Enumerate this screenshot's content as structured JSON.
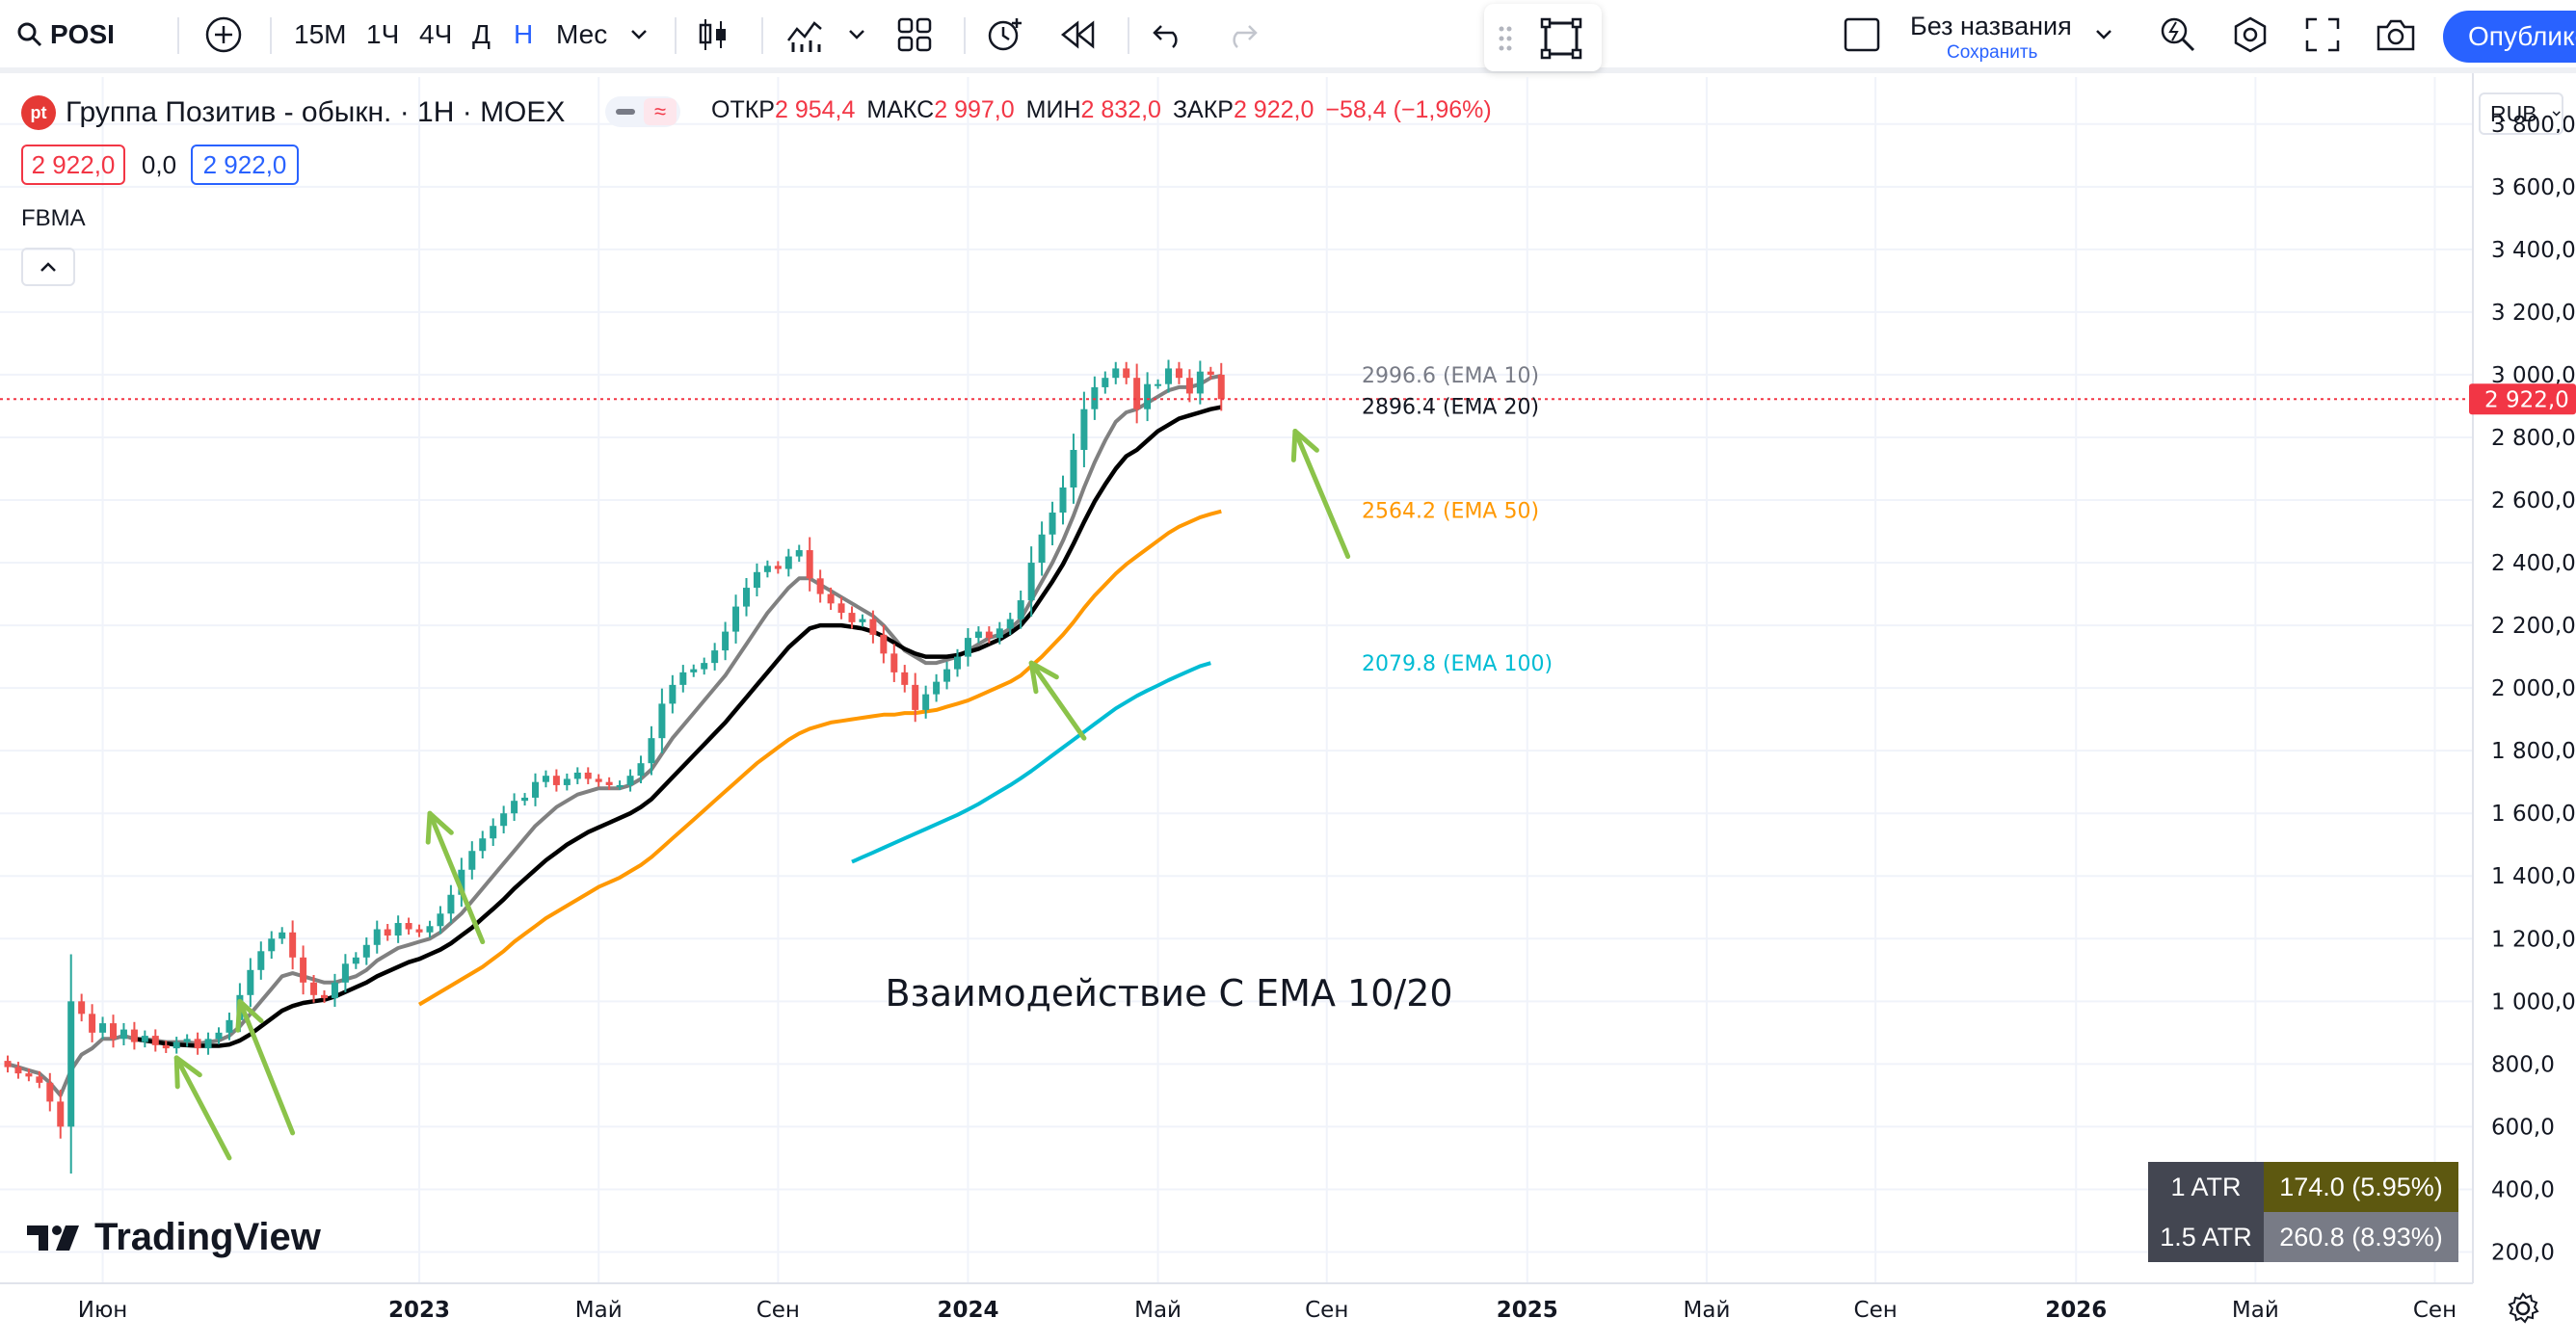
{
  "toolbar": {
    "symbol": "POSI",
    "intervals": [
      "15М",
      "1Ч",
      "4Ч",
      "Д",
      "Н",
      "Мес"
    ],
    "active_interval": "Н",
    "layout_name": "Без названия",
    "layout_save": "Сохранить",
    "publish_label": "Опубликовать"
  },
  "legend": {
    "logo_text": "pt",
    "title": "Группа Позитив - обыкн. · 1Н · MOEX",
    "open_label": "ОТКР",
    "open": "2 954,4",
    "high_label": "МАКС",
    "high": "2 997,0",
    "low_label": "МИН",
    "low": "2 832,0",
    "close_label": "ЗАКР",
    "close": "2 922,0",
    "change": "−58,4 (−1,96%)",
    "bid": "2 922,0",
    "spread": "0,0",
    "ask": "2 922,0",
    "indicator": "FBMA"
  },
  "currency": "RUB",
  "atr_table": [
    {
      "label": "1 ATR",
      "value": "174.0 (5.95%)"
    },
    {
      "label": "1.5 ATR",
      "value": "260.8 (8.93%)"
    }
  ],
  "watermark": "TradingView",
  "colors": {
    "up": "#26a69a",
    "down": "#ef5350",
    "ema10": "#808080",
    "ema20": "#000000",
    "ema50": "#ff9800",
    "ema100": "#00bcd4",
    "arrow": "#8bc34a",
    "last_price": "#f23645"
  },
  "chart_data": {
    "type": "candlestick",
    "title": "Группа Позитив - обыкн. · 1Н · MOEX",
    "annotation": "Взаимодействие С EMA 10/20",
    "ylim": [
      100,
      3950
    ],
    "y_ticks": [
      200,
      400,
      600,
      800,
      1000,
      1200,
      1400,
      1600,
      1800,
      2000,
      2200,
      2400,
      2600,
      2800,
      3000,
      3200,
      3400,
      3600,
      3800
    ],
    "y_tick_labels": [
      "200,0",
      "400,0",
      "600,0",
      "800,0",
      "1 000,0",
      "1 200,0",
      "1 400,0",
      "1 600,0",
      "1 800,0",
      "2 000,0",
      "2 200,0",
      "2 400,0",
      "2 600,0",
      "2 800,0",
      "3 000,0",
      "3 200,0",
      "3 400,0",
      "3 600,0",
      "3 800,0"
    ],
    "x_labels": [
      {
        "label": "Июн",
        "week": 9
      },
      {
        "label": "2023",
        "week": 39,
        "bold": true
      },
      {
        "label": "Май",
        "week": 56
      },
      {
        "label": "Сен",
        "week": 73
      },
      {
        "label": "2024",
        "week": 91,
        "bold": true
      },
      {
        "label": "Май",
        "week": 109
      },
      {
        "label": "Сен",
        "week": 125
      },
      {
        "label": "2025",
        "week": 144,
        "bold": true
      },
      {
        "label": "Май",
        "week": 161
      },
      {
        "label": "Сен",
        "week": 177
      },
      {
        "label": "2026",
        "week": 196,
        "bold": true
      },
      {
        "label": "Май",
        "week": 213
      },
      {
        "label": "Сен",
        "week": 230
      }
    ],
    "last_price": 2922,
    "last_price_label": "2 922,0",
    "closes": [
      790,
      770,
      760,
      740,
      680,
      600,
      1000,
      960,
      900,
      930,
      880,
      910,
      870,
      890,
      860,
      850,
      870,
      880,
      850,
      880,
      900,
      940,
      1020,
      1100,
      1160,
      1200,
      1220,
      1140,
      1060,
      1020,
      1010,
      1060,
      1120,
      1140,
      1180,
      1230,
      1210,
      1250,
      1230,
      1220,
      1240,
      1280,
      1340,
      1420,
      1480,
      1520,
      1560,
      1600,
      1640,
      1650,
      1700,
      1720,
      1690,
      1710,
      1730,
      1710,
      1700,
      1690,
      1690,
      1720,
      1760,
      1840,
      1950,
      2010,
      2050,
      2060,
      2080,
      2120,
      2180,
      2260,
      2320,
      2370,
      2390,
      2380,
      2420,
      2440,
      2350,
      2300,
      2270,
      2240,
      2210,
      2220,
      2170,
      2110,
      2050,
      2010,
      1930,
      1980,
      2020,
      2060,
      2100,
      2160,
      2180,
      2160,
      2190,
      2220,
      2280,
      2400,
      2490,
      2560,
      2640,
      2760,
      2890,
      2960,
      2990,
      3020,
      2990,
      2890,
      2970,
      2970,
      3020,
      2990,
      2940,
      3010,
      3000,
      2922
    ],
    "series": [
      {
        "name": "EMA 10",
        "last": 2996.6,
        "label": "2996.6 (EMA 10)",
        "values": [
          800,
          790,
          780,
          770,
          740,
          700,
          780,
          830,
          850,
          880,
          880,
          890,
          880,
          880,
          875,
          870,
          870,
          870,
          865,
          870,
          875,
          890,
          920,
          960,
          1000,
          1040,
          1080,
          1090,
          1080,
          1070,
          1060,
          1060,
          1070,
          1080,
          1100,
          1130,
          1150,
          1170,
          1180,
          1190,
          1200,
          1220,
          1250,
          1280,
          1320,
          1360,
          1400,
          1440,
          1480,
          1520,
          1560,
          1590,
          1620,
          1640,
          1660,
          1670,
          1680,
          1680,
          1680,
          1690,
          1710,
          1740,
          1790,
          1840,
          1880,
          1920,
          1960,
          2000,
          2040,
          2090,
          2140,
          2190,
          2240,
          2280,
          2320,
          2350,
          2350,
          2330,
          2310,
          2290,
          2270,
          2250,
          2230,
          2200,
          2160,
          2120,
          2100,
          2080,
          2080,
          2090,
          2100,
          2120,
          2140,
          2160,
          2170,
          2190,
          2220,
          2280,
          2340,
          2400,
          2470,
          2550,
          2640,
          2720,
          2790,
          2850,
          2880,
          2890,
          2910,
          2930,
          2950,
          2960,
          2960,
          2970,
          2990,
          2996.6
        ]
      },
      {
        "name": "EMA 20",
        "last": 2896.4,
        "label": "2896.4 (EMA 20)",
        "values": [
          null,
          null,
          null,
          null,
          null,
          null,
          null,
          null,
          null,
          null,
          null,
          null,
          880,
          875,
          870,
          865,
          862,
          860,
          858,
          858,
          858,
          862,
          875,
          895,
          920,
          945,
          970,
          985,
          995,
          1000,
          1005,
          1015,
          1030,
          1045,
          1060,
          1080,
          1095,
          1110,
          1125,
          1135,
          1150,
          1165,
          1185,
          1210,
          1235,
          1265,
          1295,
          1325,
          1360,
          1390,
          1420,
          1450,
          1475,
          1500,
          1520,
          1540,
          1555,
          1570,
          1585,
          1600,
          1620,
          1645,
          1680,
          1715,
          1750,
          1785,
          1820,
          1855,
          1890,
          1930,
          1970,
          2010,
          2050,
          2090,
          2130,
          2160,
          2190,
          2200,
          2200,
          2200,
          2195,
          2190,
          2180,
          2165,
          2145,
          2125,
          2110,
          2100,
          2100,
          2100,
          2105,
          2115,
          2125,
          2140,
          2155,
          2175,
          2200,
          2240,
          2290,
          2340,
          2395,
          2460,
          2530,
          2595,
          2650,
          2700,
          2740,
          2760,
          2790,
          2820,
          2840,
          2860,
          2870,
          2880,
          2890,
          2896.4
        ]
      },
      {
        "name": "EMA 50",
        "last": 2564.2,
        "label": "2564.2 (EMA 50)",
        "values": [
          null,
          null,
          null,
          null,
          null,
          null,
          null,
          null,
          null,
          null,
          null,
          null,
          null,
          null,
          null,
          null,
          null,
          null,
          null,
          null,
          null,
          null,
          null,
          null,
          null,
          null,
          null,
          null,
          null,
          null,
          null,
          null,
          null,
          null,
          null,
          null,
          null,
          null,
          null,
          990,
          1010,
          1030,
          1050,
          1070,
          1090,
          1110,
          1135,
          1160,
          1190,
          1215,
          1240,
          1265,
          1285,
          1305,
          1325,
          1345,
          1365,
          1380,
          1395,
          1415,
          1435,
          1460,
          1490,
          1520,
          1550,
          1580,
          1610,
          1640,
          1670,
          1700,
          1730,
          1760,
          1785,
          1810,
          1835,
          1855,
          1870,
          1880,
          1890,
          1895,
          1900,
          1905,
          1910,
          1915,
          1915,
          1920,
          1920,
          1925,
          1930,
          1940,
          1950,
          1960,
          1975,
          1990,
          2005,
          2020,
          2040,
          2070,
          2100,
          2135,
          2170,
          2210,
          2255,
          2295,
          2330,
          2365,
          2395,
          2420,
          2445,
          2470,
          2495,
          2515,
          2530,
          2545,
          2555,
          2564.2
        ]
      },
      {
        "name": "EMA 100",
        "last": 2079.8,
        "label": "2079.8 (EMA 100)",
        "values": [
          null,
          null,
          null,
          null,
          null,
          null,
          null,
          null,
          null,
          null,
          null,
          null,
          null,
          null,
          null,
          null,
          null,
          null,
          null,
          null,
          null,
          null,
          null,
          null,
          null,
          null,
          null,
          null,
          null,
          null,
          null,
          null,
          null,
          null,
          null,
          null,
          null,
          null,
          null,
          null,
          null,
          null,
          null,
          null,
          null,
          null,
          null,
          null,
          null,
          null,
          null,
          null,
          null,
          null,
          null,
          null,
          null,
          null,
          null,
          null,
          null,
          null,
          null,
          null,
          null,
          null,
          null,
          null,
          null,
          null,
          null,
          null,
          null,
          null,
          null,
          null,
          null,
          null,
          null,
          null,
          1445,
          1460,
          1475,
          1490,
          1505,
          1520,
          1535,
          1550,
          1565,
          1580,
          1595,
          1612,
          1630,
          1650,
          1670,
          1690,
          1712,
          1735,
          1760,
          1785,
          1810,
          1835,
          1860,
          1885,
          1910,
          1935,
          1955,
          1975,
          1992,
          2008,
          2025,
          2040,
          2055,
          2070,
          2079.8
        ]
      }
    ],
    "arrows": [
      {
        "from": [
          21,
          500
        ],
        "to": [
          16,
          820
        ]
      },
      {
        "from": [
          27,
          580
        ],
        "to": [
          22,
          1000
        ]
      },
      {
        "from": [
          45,
          1190
        ],
        "to": [
          40,
          1600
        ]
      },
      {
        "from": [
          102,
          1840
        ],
        "to": [
          97,
          2080
        ]
      },
      {
        "from": [
          127,
          2420
        ],
        "to": [
          122,
          2820
        ]
      }
    ]
  }
}
